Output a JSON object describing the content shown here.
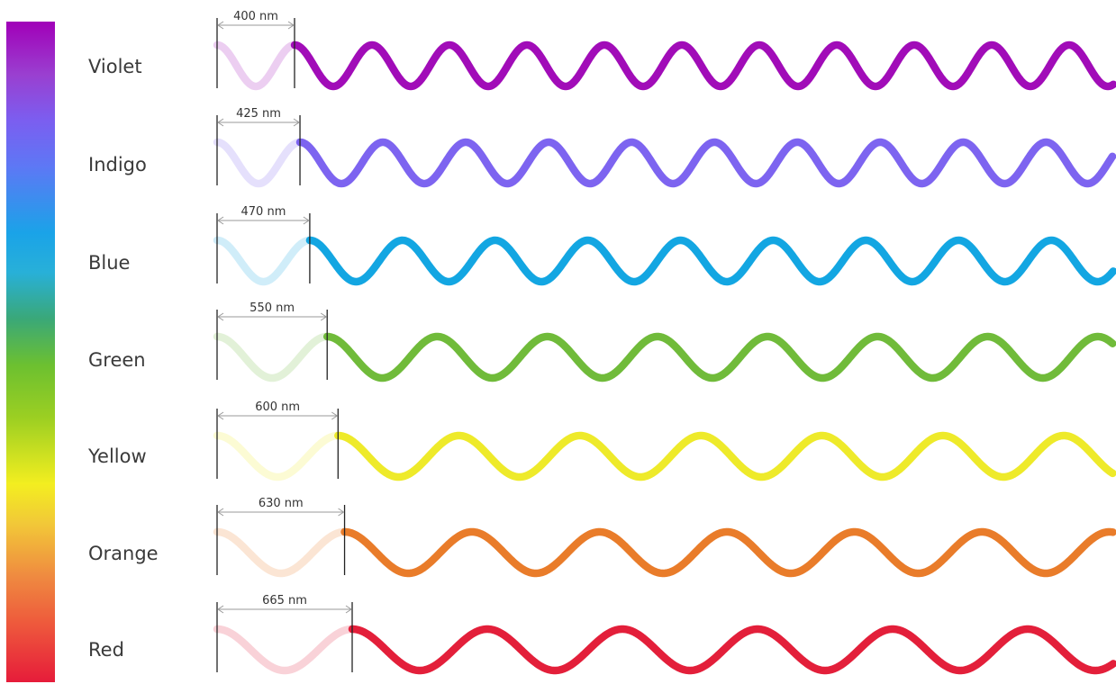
{
  "bands": [
    {
      "name": "Violet",
      "wavelength_label": "400 nm",
      "wavelength_nm": 400,
      "color": "#a10cb8"
    },
    {
      "name": "Indigo",
      "wavelength_label": "425 nm",
      "wavelength_nm": 425,
      "color": "#7d64f0"
    },
    {
      "name": "Blue",
      "wavelength_label": "470 nm",
      "wavelength_nm": 470,
      "color": "#13a6e2"
    },
    {
      "name": "Green",
      "wavelength_label": "550 nm",
      "wavelength_nm": 550,
      "color": "#70bb3a"
    },
    {
      "name": "Yellow",
      "wavelength_label": "600 nm",
      "wavelength_nm": 600,
      "color": "#eeea2a"
    },
    {
      "name": "Orange",
      "wavelength_label": "630 nm",
      "wavelength_nm": 630,
      "color": "#e97c2a"
    },
    {
      "name": "Red",
      "wavelength_label": "665 nm",
      "wavelength_nm": 665,
      "color": "#e31f3a"
    }
  ]
}
